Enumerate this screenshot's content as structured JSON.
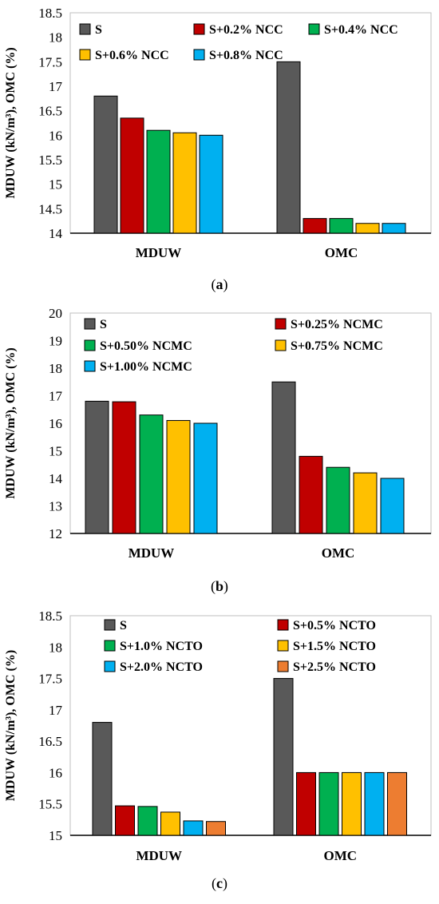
{
  "figure": {
    "y_axis_title": "MDUW (kN/m³), OMC (%)"
  },
  "chart_data": [
    {
      "type": "bar",
      "caption": {
        "open": "(",
        "letter": "a",
        "close": ")"
      },
      "ylabel": "MDUW (kN/m³), OMC (%)",
      "categories": [
        "MDUW",
        "OMC"
      ],
      "ylim": [
        14,
        18.5
      ],
      "yticks": [
        "14",
        "14.5",
        "15",
        "15.5",
        "16",
        "16.5",
        "17",
        "17.5",
        "18",
        "18.5"
      ],
      "grid": false,
      "legend_position": "top",
      "series": [
        {
          "name": "S",
          "color": "#595959",
          "values": [
            16.8,
            17.5
          ]
        },
        {
          "name": "S+0.2% NCC",
          "color": "#C00000",
          "values": [
            16.35,
            14.3
          ]
        },
        {
          "name": "S+0.4% NCC",
          "color": "#00B050",
          "values": [
            16.1,
            14.3
          ]
        },
        {
          "name": "S+0.6% NCC",
          "color": "#FFC000",
          "values": [
            16.05,
            14.2
          ]
        },
        {
          "name": "S+0.8% NCC",
          "color": "#00B0F0",
          "values": [
            16.0,
            14.2
          ]
        }
      ]
    },
    {
      "type": "bar",
      "caption": {
        "open": "(",
        "letter": "b",
        "close": ")"
      },
      "ylabel": "MDUW (kN/m³), OMC (%)",
      "categories": [
        "MDUW",
        "OMC"
      ],
      "ylim": [
        12,
        20
      ],
      "yticks": [
        "12",
        "13",
        "14",
        "15",
        "16",
        "17",
        "18",
        "19",
        "20"
      ],
      "grid": false,
      "legend_position": "top",
      "series": [
        {
          "name": "S",
          "color": "#595959",
          "values": [
            16.8,
            17.5
          ]
        },
        {
          "name": "S+0.25% NCMC",
          "color": "#C00000",
          "values": [
            16.78,
            14.8
          ]
        },
        {
          "name": "S+0.50% NCMC",
          "color": "#00B050",
          "values": [
            16.3,
            14.4
          ]
        },
        {
          "name": "S+0.75% NCMC",
          "color": "#FFC000",
          "values": [
            16.1,
            14.2
          ]
        },
        {
          "name": "S+1.00% NCMC",
          "color": "#00B0F0",
          "values": [
            16.0,
            14.0
          ]
        }
      ]
    },
    {
      "type": "bar",
      "caption": {
        "open": "(",
        "letter": "c",
        "close": ")"
      },
      "ylabel": "MDUW (kN/m³), OMC (%)",
      "categories": [
        "MDUW",
        "OMC"
      ],
      "ylim": [
        15,
        18.5
      ],
      "yticks": [
        "15",
        "15.5",
        "16",
        "16.5",
        "17",
        "17.5",
        "18",
        "18.5"
      ],
      "grid": false,
      "legend_position": "top",
      "series": [
        {
          "name": "S",
          "color": "#595959",
          "values": [
            16.8,
            17.5
          ]
        },
        {
          "name": "S+0.5% NCTO",
          "color": "#C00000",
          "values": [
            15.47,
            16.0
          ]
        },
        {
          "name": "S+1.0% NCTO",
          "color": "#00B050",
          "values": [
            15.46,
            16.0
          ]
        },
        {
          "name": "S+1.5% NCTO",
          "color": "#FFC000",
          "values": [
            15.37,
            16.0
          ]
        },
        {
          "name": "S+2.0% NCTO",
          "color": "#00B0F0",
          "values": [
            15.23,
            16.0
          ]
        },
        {
          "name": "S+2.5% NCTO",
          "color": "#ED7D31",
          "values": [
            15.22,
            16.0
          ]
        }
      ]
    }
  ]
}
